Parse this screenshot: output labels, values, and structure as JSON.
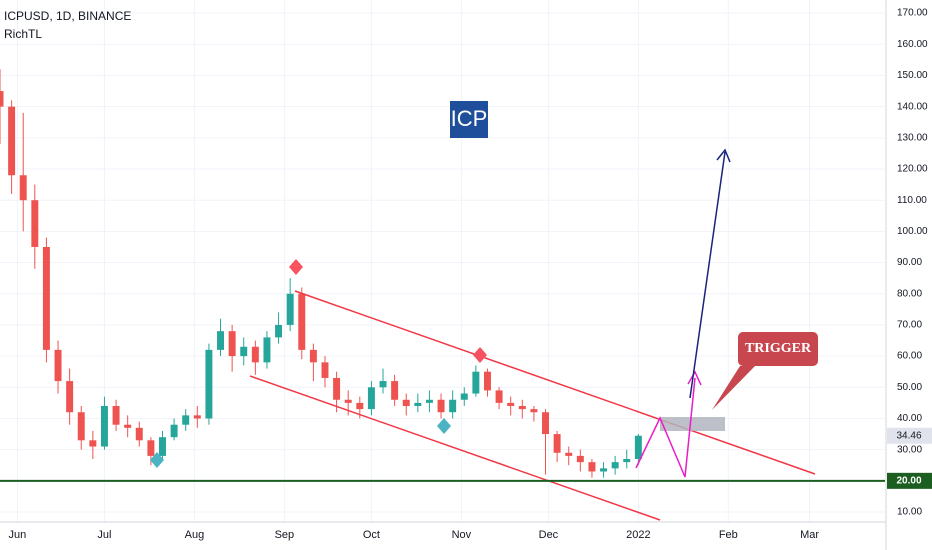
{
  "chart_data": {
    "type": "candlestick",
    "title": "ICPUSD, 1D, BINANCE",
    "subtitle": "RichTL",
    "annotations": {
      "badge": "ICP",
      "callout": "TRIGGER"
    },
    "xlim": [
      0,
      305
    ],
    "xticks": [
      {
        "value": 6,
        "label": "Jun"
      },
      {
        "value": 36,
        "label": "Jul"
      },
      {
        "value": 67,
        "label": "Aug"
      },
      {
        "value": 98,
        "label": "Sep"
      },
      {
        "value": 128,
        "label": "Oct"
      },
      {
        "value": 159,
        "label": "Nov"
      },
      {
        "value": 189,
        "label": "Dec"
      },
      {
        "value": 220,
        "label": "2022"
      },
      {
        "value": 251,
        "label": "Feb"
      },
      {
        "value": 279,
        "label": "Mar"
      }
    ],
    "ylim": [
      6.8,
      174.2
    ],
    "yticks": [
      {
        "value": 10,
        "label": "10.00"
      },
      {
        "value": 30,
        "label": "30.00"
      },
      {
        "value": 40,
        "label": "40.00"
      },
      {
        "value": 50,
        "label": "50.00"
      },
      {
        "value": 60,
        "label": "60.00"
      },
      {
        "value": 70,
        "label": "70.00"
      },
      {
        "value": 80,
        "label": "80.00"
      },
      {
        "value": 90,
        "label": "90.00"
      },
      {
        "value": 100,
        "label": "100.00"
      },
      {
        "value": 110,
        "label": "110.00"
      },
      {
        "value": 120,
        "label": "120.00"
      },
      {
        "value": 130,
        "label": "130.00"
      },
      {
        "value": 140,
        "label": "140.00"
      },
      {
        "value": 150,
        "label": "150.00"
      },
      {
        "value": 160,
        "label": "160.00"
      },
      {
        "value": 170,
        "label": "170.00"
      }
    ],
    "support_line": {
      "value": 20,
      "label": "20.00",
      "color": "#1b5e20"
    },
    "last_price": 34.46,
    "up_color": "#26a69a",
    "down_color": "#ef5350",
    "series": [
      {
        "x": [
          0,
          4,
          8,
          12,
          16,
          20,
          24,
          28,
          32,
          36,
          40,
          44,
          48,
          52,
          56,
          60,
          64,
          68,
          72,
          76,
          80,
          84,
          88,
          92,
          96,
          100,
          104,
          108,
          112,
          116,
          120,
          124,
          128,
          132,
          136,
          140,
          144,
          148,
          152,
          156,
          160,
          164,
          168,
          172,
          176,
          180,
          184,
          188,
          192,
          196,
          200,
          204,
          208,
          212,
          216,
          220
        ],
        "open": [
          145,
          140,
          118,
          110,
          95,
          62,
          52,
          42,
          33,
          31,
          44,
          38,
          37,
          33,
          28,
          34,
          38,
          41,
          40,
          62,
          68,
          60,
          63,
          58,
          66,
          70,
          80,
          62,
          58,
          53,
          46,
          45,
          43,
          50,
          52,
          46,
          44,
          45,
          46,
          42,
          46,
          48,
          55,
          49,
          45,
          44,
          43,
          42,
          35,
          29,
          28,
          26,
          23,
          24,
          26,
          27
        ],
        "high": [
          152,
          142,
          138,
          115,
          98,
          65,
          56,
          44,
          36,
          47,
          46,
          41,
          39,
          34,
          36,
          40,
          43,
          44,
          64,
          72,
          70,
          66,
          65,
          68,
          74,
          85,
          82,
          64,
          60,
          55,
          49,
          47,
          52,
          56,
          54,
          48,
          48,
          49,
          48,
          49,
          50,
          57,
          56,
          50,
          47,
          46,
          44,
          43,
          36,
          31,
          30,
          27,
          26,
          28,
          30,
          35
        ],
        "low": [
          128,
          112,
          100,
          88,
          58,
          48,
          38,
          30,
          27,
          30,
          36,
          34,
          31,
          25,
          27,
          33,
          36,
          37,
          38,
          60,
          55,
          57,
          54,
          56,
          64,
          68,
          59,
          52,
          50,
          42,
          41,
          40,
          41,
          48,
          44,
          41,
          42,
          42,
          40,
          40,
          44,
          47,
          47,
          43,
          41,
          40,
          39,
          22,
          26,
          25,
          23,
          21,
          21,
          22,
          24,
          25
        ],
        "close": [
          140,
          118,
          110,
          95,
          62,
          52,
          42,
          33,
          31,
          44,
          38,
          37,
          33,
          28,
          34,
          38,
          41,
          40,
          62,
          68,
          60,
          63,
          58,
          66,
          70,
          80,
          62,
          58,
          53,
          46,
          45,
          43,
          50,
          52,
          46,
          44,
          45,
          46,
          42,
          46,
          48,
          55,
          49,
          45,
          44,
          43,
          42,
          35,
          29,
          28,
          26,
          23,
          24,
          26,
          27,
          34.46
        ]
      }
    ]
  }
}
